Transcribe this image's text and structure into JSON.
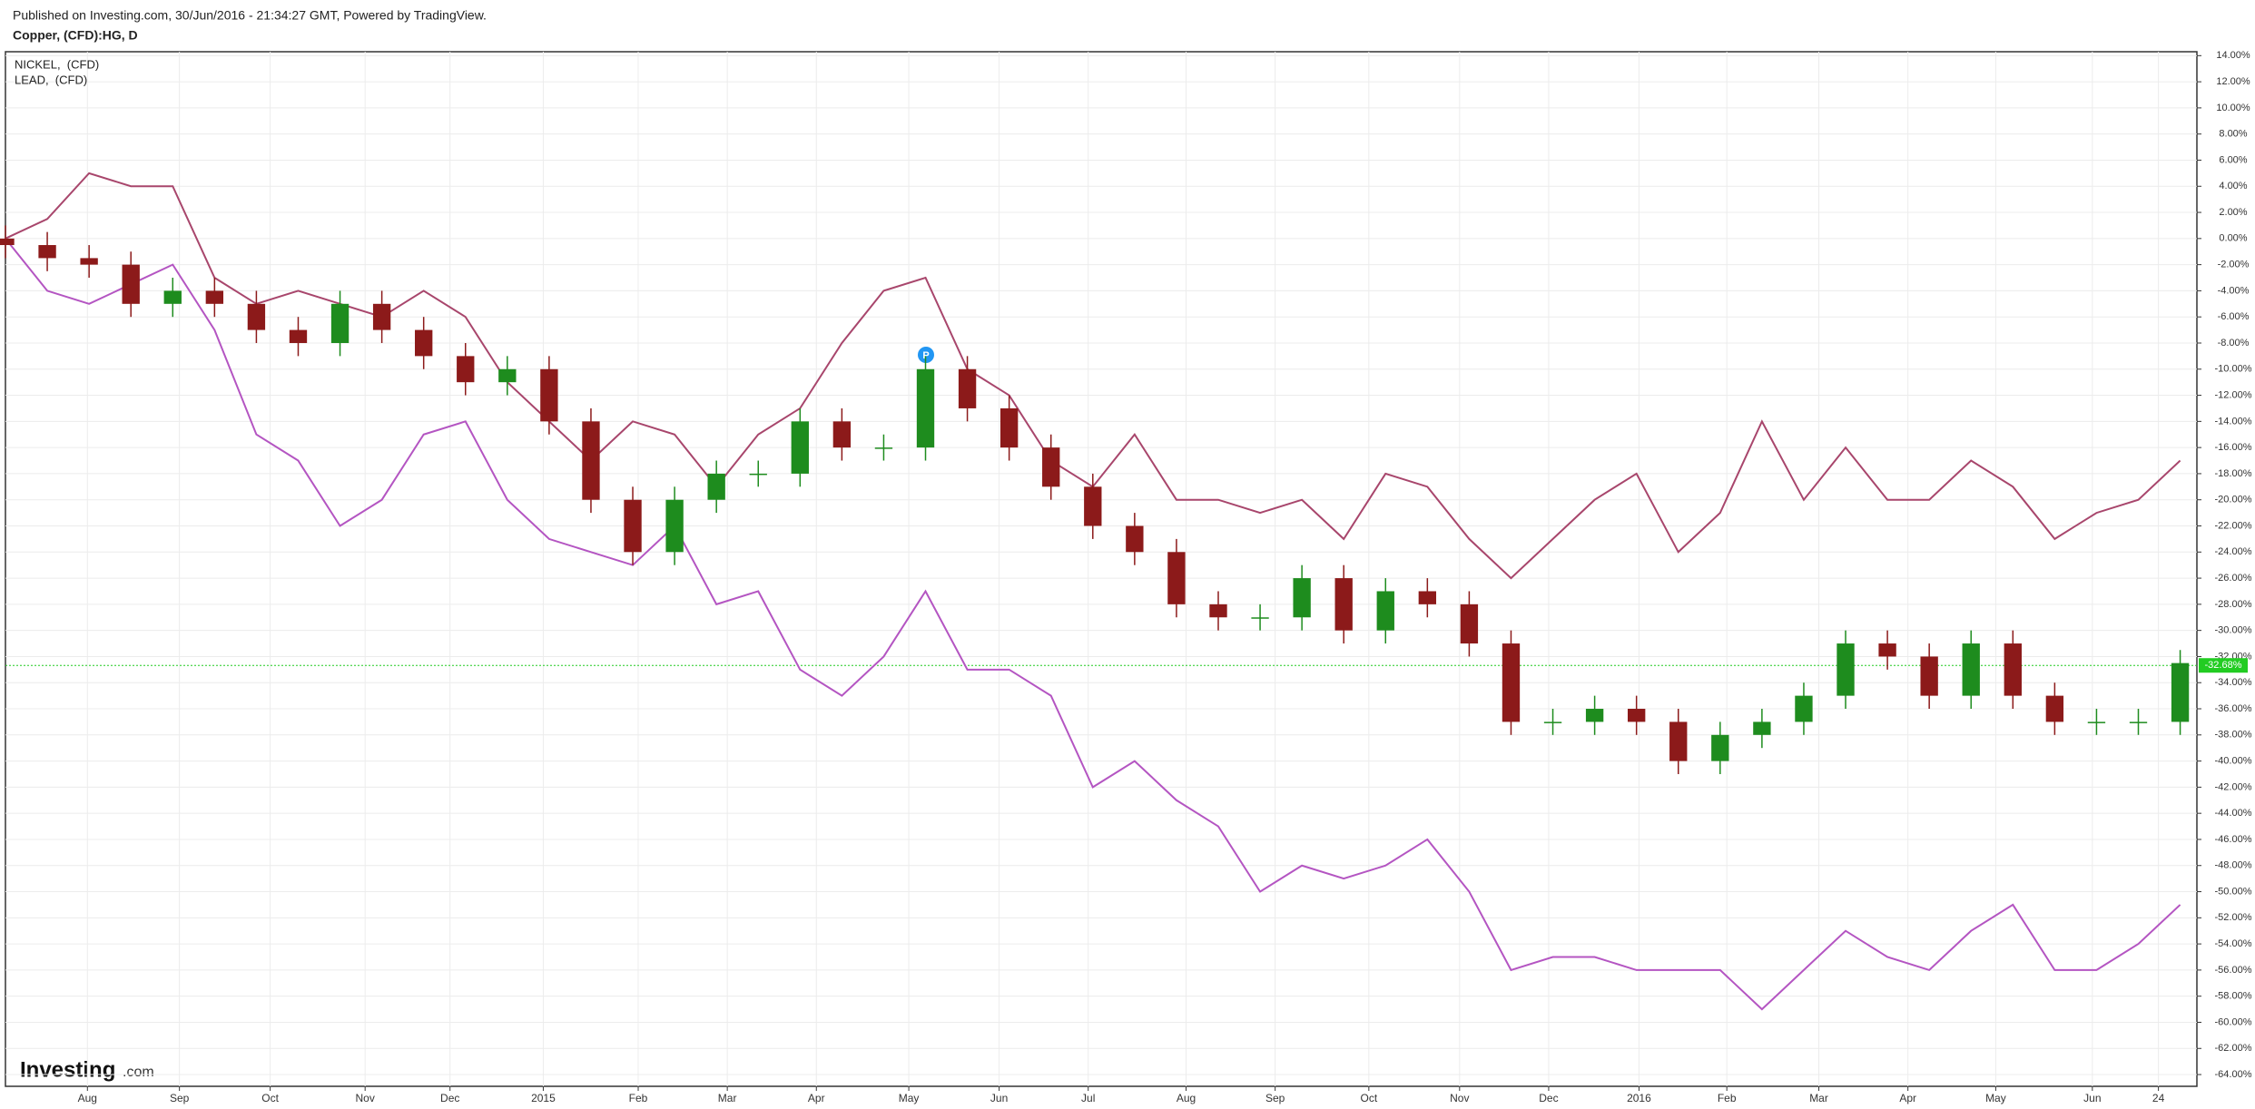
{
  "chart_data": {
    "type": "candlestick",
    "subtitle": "Published on Investing.com, 30/Jun/2016 - 21:34:27 GMT, Powered by TradingView.",
    "title": "Copper, (CFD):HG, D",
    "watermark": {
      "brand": "Investing",
      "suffix": ".com"
    },
    "grid": true,
    "legend": "top-left",
    "xlim": [
      0,
      52.4
    ],
    "xticks": [
      {
        "value": 1.96,
        "label": "Aug"
      },
      {
        "value": 4.16,
        "label": "Sep"
      },
      {
        "value": 6.33,
        "label": "Oct"
      },
      {
        "value": 8.6,
        "label": "Nov"
      },
      {
        "value": 10.63,
        "label": "Dec"
      },
      {
        "value": 12.86,
        "label": "2015"
      },
      {
        "value": 15.13,
        "label": "Feb"
      },
      {
        "value": 17.26,
        "label": "Mar"
      },
      {
        "value": 19.39,
        "label": "Apr"
      },
      {
        "value": 21.6,
        "label": "May"
      },
      {
        "value": 23.76,
        "label": "Jun"
      },
      {
        "value": 25.89,
        "label": "Jul"
      },
      {
        "value": 28.23,
        "label": "Aug"
      },
      {
        "value": 30.36,
        "label": "Sep"
      },
      {
        "value": 32.6,
        "label": "Oct"
      },
      {
        "value": 34.77,
        "label": "Nov"
      },
      {
        "value": 36.9,
        "label": "Dec"
      },
      {
        "value": 39.06,
        "label": "2016"
      },
      {
        "value": 41.16,
        "label": "Feb"
      },
      {
        "value": 43.36,
        "label": "Mar"
      },
      {
        "value": 45.49,
        "label": "Apr"
      },
      {
        "value": 47.59,
        "label": "May"
      },
      {
        "value": 49.9,
        "label": "Jun"
      },
      {
        "value": 51.48,
        "label": "24"
      }
    ],
    "ylim": [
      -64.9,
      14.3
    ],
    "yticks": [
      {
        "value": 14,
        "label": "14.00%"
      },
      {
        "value": 12,
        "label": "12.00%"
      },
      {
        "value": 10,
        "label": "10.00%"
      },
      {
        "value": 8,
        "label": "8.00%"
      },
      {
        "value": 6,
        "label": "6.00%"
      },
      {
        "value": 4,
        "label": "4.00%"
      },
      {
        "value": 2,
        "label": "2.00%"
      },
      {
        "value": 0,
        "label": "0.00%"
      },
      {
        "value": -2,
        "label": "-2.00%"
      },
      {
        "value": -4,
        "label": "-4.00%"
      },
      {
        "value": -6,
        "label": "-6.00%"
      },
      {
        "value": -8,
        "label": "-8.00%"
      },
      {
        "value": -10,
        "label": "-10.00%"
      },
      {
        "value": -12,
        "label": "-12.00%"
      },
      {
        "value": -14,
        "label": "-14.00%"
      },
      {
        "value": -16,
        "label": "-16.00%"
      },
      {
        "value": -18,
        "label": "-18.00%"
      },
      {
        "value": -20,
        "label": "-20.00%"
      },
      {
        "value": -22,
        "label": "-22.00%"
      },
      {
        "value": -24,
        "label": "-24.00%"
      },
      {
        "value": -26,
        "label": "-26.00%"
      },
      {
        "value": -28,
        "label": "-28.00%"
      },
      {
        "value": -30,
        "label": "-30.00%"
      },
      {
        "value": -32,
        "label": "-32.00%"
      },
      {
        "value": -34,
        "label": "-34.00%"
      },
      {
        "value": -36,
        "label": "-36.00%"
      },
      {
        "value": -38,
        "label": "-38.00%"
      },
      {
        "value": -40,
        "label": "-40.00%"
      },
      {
        "value": -42,
        "label": "-42.00%"
      },
      {
        "value": -44,
        "label": "-44.00%"
      },
      {
        "value": -46,
        "label": "-46.00%"
      },
      {
        "value": -48,
        "label": "-48.00%"
      },
      {
        "value": -50,
        "label": "-50.00%"
      },
      {
        "value": -52,
        "label": "-52.00%"
      },
      {
        "value": -54,
        "label": "-54.00%"
      },
      {
        "value": -56,
        "label": "-56.00%"
      },
      {
        "value": -58,
        "label": "-58.00%"
      },
      {
        "value": -60,
        "label": "-60.00%"
      },
      {
        "value": -62,
        "label": "-62.00%"
      },
      {
        "value": -64,
        "label": "-64.00%"
      }
    ],
    "candles": {
      "color_up": "#1e8c1e",
      "color_down": "#8c1a1a",
      "open": [
        0,
        -0.5,
        -1.5,
        -2,
        -5,
        -4,
        -5,
        -7,
        -8,
        -5,
        -7,
        -9,
        -11,
        -10,
        -14,
        -20,
        -24,
        -20,
        -18,
        -18,
        -14,
        -16,
        -16,
        -10,
        -13,
        -16,
        -19,
        -22,
        -24,
        -28,
        -29,
        -29,
        -26,
        -30,
        -27,
        -28,
        -31,
        -37,
        -37,
        -36,
        -37,
        -40,
        -38,
        -37,
        -35,
        -31,
        -32,
        -35,
        -31,
        -35,
        -37,
        -37,
        -37
      ],
      "high": [
        1,
        0.5,
        -0.5,
        -1,
        -3,
        -3,
        -4,
        -6,
        -4,
        -4,
        -6,
        -8,
        -9,
        -9,
        -13,
        -19,
        -19,
        -17,
        -17,
        -13,
        -13,
        -15,
        -9,
        -9,
        -12,
        -15,
        -18,
        -21,
        -23,
        -27,
        -28,
        -25,
        -25,
        -26,
        -26,
        -27,
        -30,
        -36,
        -35,
        -35,
        -36,
        -37,
        -36,
        -34,
        -30,
        -30,
        -31,
        -30,
        -30,
        -34,
        -36,
        -36,
        -31.5
      ],
      "low": [
        -1.5,
        -2.5,
        -3,
        -6,
        -6,
        -6,
        -8,
        -9,
        -9,
        -8,
        -10,
        -12,
        -12,
        -15,
        -21,
        -25,
        -25,
        -21,
        -19,
        -19,
        -17,
        -17,
        -17,
        -14,
        -17,
        -20,
        -23,
        -25,
        -29,
        -30,
        -30,
        -30,
        -31,
        -31,
        -29,
        -32,
        -38,
        -38,
        -38,
        -38,
        -41,
        -41,
        -39,
        -38,
        -36,
        -33,
        -36,
        -36,
        -36,
        -38,
        -38,
        -38,
        -38
      ],
      "close": [
        -0.5,
        -1.5,
        -2,
        -5,
        -4,
        -5,
        -7,
        -8,
        -5,
        -7,
        -9,
        -11,
        -10,
        -14,
        -20,
        -24,
        -20,
        -18,
        -18,
        -14,
        -16,
        -16,
        -10,
        -13,
        -16,
        -19,
        -22,
        -24,
        -28,
        -29,
        -29,
        -26,
        -30,
        -27,
        -28,
        -31,
        -37,
        -37,
        -36,
        -37,
        -40,
        -38,
        -37,
        -35,
        -31,
        -32,
        -35,
        -31,
        -35,
        -37,
        -37,
        -37,
        -32.5
      ]
    },
    "price_line": {
      "value": -32.68,
      "label": "-32.68%",
      "color": "#22cc22"
    },
    "series": [
      {
        "name": "NICKEL,  (CFD)",
        "color": "#b455c2",
        "values": [
          0,
          -4,
          -5,
          -3.5,
          -2,
          -7,
          -15,
          -17,
          -22,
          -20,
          -15,
          -14,
          -20,
          -23,
          -24,
          -25,
          -22,
          -28,
          -27,
          -33,
          -35,
          -32,
          -27,
          -33,
          -33,
          -35,
          -42,
          -40,
          -43,
          -45,
          -50,
          -48,
          -49,
          -48,
          -46,
          -50,
          -56,
          -55,
          -55,
          -56,
          -56,
          -56,
          -59,
          -56,
          -53,
          -55,
          -56,
          -53,
          -51,
          -56,
          -56,
          -54,
          -51
        ]
      },
      {
        "name": "LEAD,  (CFD)",
        "color": "#a8466c",
        "values": [
          0,
          1.5,
          5,
          4,
          4,
          -3,
          -5,
          -4,
          -5,
          -6,
          -4,
          -6,
          -11,
          -14,
          -17,
          -14,
          -15,
          -19,
          -15,
          -13,
          -8,
          -4,
          -3,
          -10,
          -12,
          -17,
          -19,
          -15,
          -20,
          -20,
          -21,
          -20,
          -23,
          -18,
          -19,
          -23,
          -26,
          -23,
          -20,
          -18,
          -24,
          -21,
          -14,
          -20,
          -16,
          -20,
          -20,
          -17,
          -19,
          -23,
          -21,
          -20,
          -17
        ]
      }
    ]
  }
}
